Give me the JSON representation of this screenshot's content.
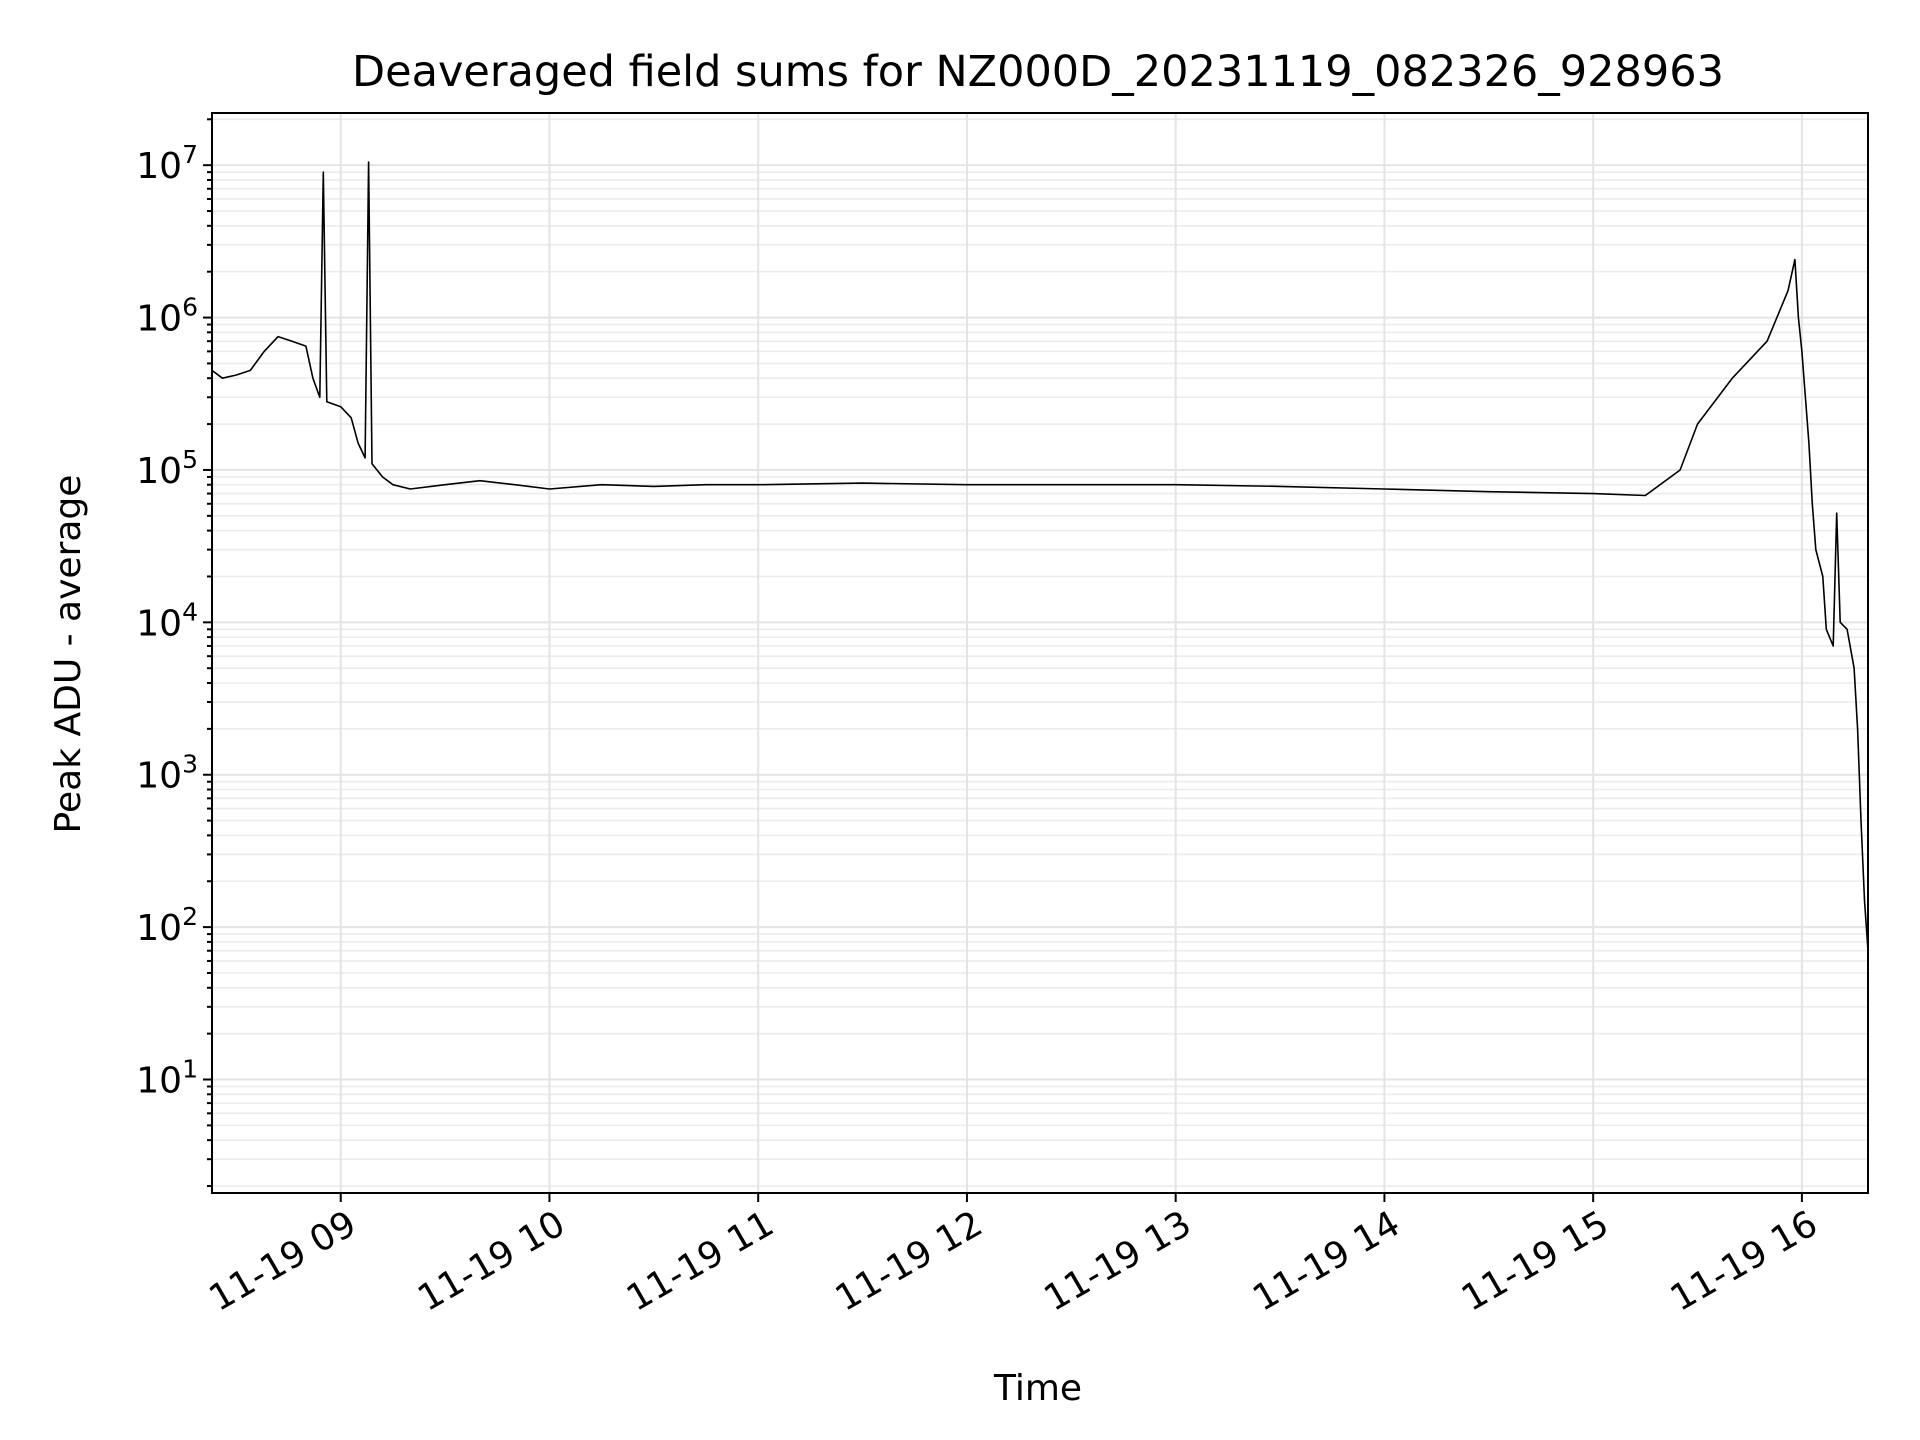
{
  "chart_data": {
    "type": "line",
    "title": "Deaveraged field sums for NZ000D_20231119_082326_928963",
    "xlabel": "Time",
    "ylabel": "Peak ADU - average",
    "yscale": "log",
    "grid": true,
    "xlim": [
      "2023-11-19 08:23",
      "2023-11-19 16:19"
    ],
    "ylim": [
      1.8,
      22000000
    ],
    "x_ticks": [
      "11-19 09",
      "11-19 10",
      "11-19 11",
      "11-19 12",
      "11-19 13",
      "11-19 14",
      "11-19 15",
      "11-19 16"
    ],
    "y_ticks": [
      {
        "base": "10",
        "exp": "1"
      },
      {
        "base": "10",
        "exp": "2"
      },
      {
        "base": "10",
        "exp": "3"
      },
      {
        "base": "10",
        "exp": "4"
      },
      {
        "base": "10",
        "exp": "5"
      },
      {
        "base": "10",
        "exp": "6"
      },
      {
        "base": "10",
        "exp": "7"
      }
    ],
    "series": [
      {
        "color": "#000000",
        "points": [
          [
            "2023-11-19 08:23",
            450000
          ],
          [
            "2023-11-19 08:26",
            400000
          ],
          [
            "2023-11-19 08:30",
            420000
          ],
          [
            "2023-11-19 08:34",
            450000
          ],
          [
            "2023-11-19 08:38",
            600000
          ],
          [
            "2023-11-19 08:42",
            750000
          ],
          [
            "2023-11-19 08:46",
            700000
          ],
          [
            "2023-11-19 08:50",
            650000
          ],
          [
            "2023-11-19 08:52",
            400000
          ],
          [
            "2023-11-19 08:54",
            300000
          ],
          [
            "2023-11-19 08:55",
            9000000
          ],
          [
            "2023-11-19 08:56",
            280000
          ],
          [
            "2023-11-19 09:00",
            260000
          ],
          [
            "2023-11-19 09:03",
            220000
          ],
          [
            "2023-11-19 09:05",
            150000
          ],
          [
            "2023-11-19 09:07",
            120000
          ],
          [
            "2023-11-19 09:08",
            10500000
          ],
          [
            "2023-11-19 09:09",
            110000
          ],
          [
            "2023-11-19 09:12",
            90000
          ],
          [
            "2023-11-19 09:15",
            80000
          ],
          [
            "2023-11-19 09:20",
            75000
          ],
          [
            "2023-11-19 09:30",
            80000
          ],
          [
            "2023-11-19 09:40",
            85000
          ],
          [
            "2023-11-19 09:50",
            80000
          ],
          [
            "2023-11-19 10:00",
            75000
          ],
          [
            "2023-11-19 10:15",
            80000
          ],
          [
            "2023-11-19 10:30",
            78000
          ],
          [
            "2023-11-19 10:45",
            80000
          ],
          [
            "2023-11-19 11:00",
            80000
          ],
          [
            "2023-11-19 11:30",
            82000
          ],
          [
            "2023-11-19 12:00",
            80000
          ],
          [
            "2023-11-19 12:30",
            80000
          ],
          [
            "2023-11-19 13:00",
            80000
          ],
          [
            "2023-11-19 13:30",
            78000
          ],
          [
            "2023-11-19 14:00",
            75000
          ],
          [
            "2023-11-19 14:30",
            72000
          ],
          [
            "2023-11-19 15:00",
            70000
          ],
          [
            "2023-11-19 15:15",
            68000
          ],
          [
            "2023-11-19 15:25",
            100000
          ],
          [
            "2023-11-19 15:30",
            200000
          ],
          [
            "2023-11-19 15:40",
            400000
          ],
          [
            "2023-11-19 15:50",
            700000
          ],
          [
            "2023-11-19 15:56",
            1500000
          ],
          [
            "2023-11-19 15:58",
            2400000
          ],
          [
            "2023-11-19 15:59",
            1000000
          ],
          [
            "2023-11-19 16:00",
            600000
          ],
          [
            "2023-11-19 16:01",
            300000
          ],
          [
            "2023-11-19 16:02",
            150000
          ],
          [
            "2023-11-19 16:03",
            60000
          ],
          [
            "2023-11-19 16:04",
            30000
          ],
          [
            "2023-11-19 16:06",
            20000
          ],
          [
            "2023-11-19 16:07",
            9000
          ],
          [
            "2023-11-19 16:09",
            7000
          ],
          [
            "2023-11-19 16:10",
            52000
          ],
          [
            "2023-11-19 16:11",
            10000
          ],
          [
            "2023-11-19 16:13",
            9000
          ],
          [
            "2023-11-19 16:15",
            5000
          ],
          [
            "2023-11-19 16:16",
            2000
          ],
          [
            "2023-11-19 16:17",
            500
          ],
          [
            "2023-11-19 16:18",
            150
          ],
          [
            "2023-11-19 16:19",
            70
          ]
        ]
      }
    ]
  }
}
